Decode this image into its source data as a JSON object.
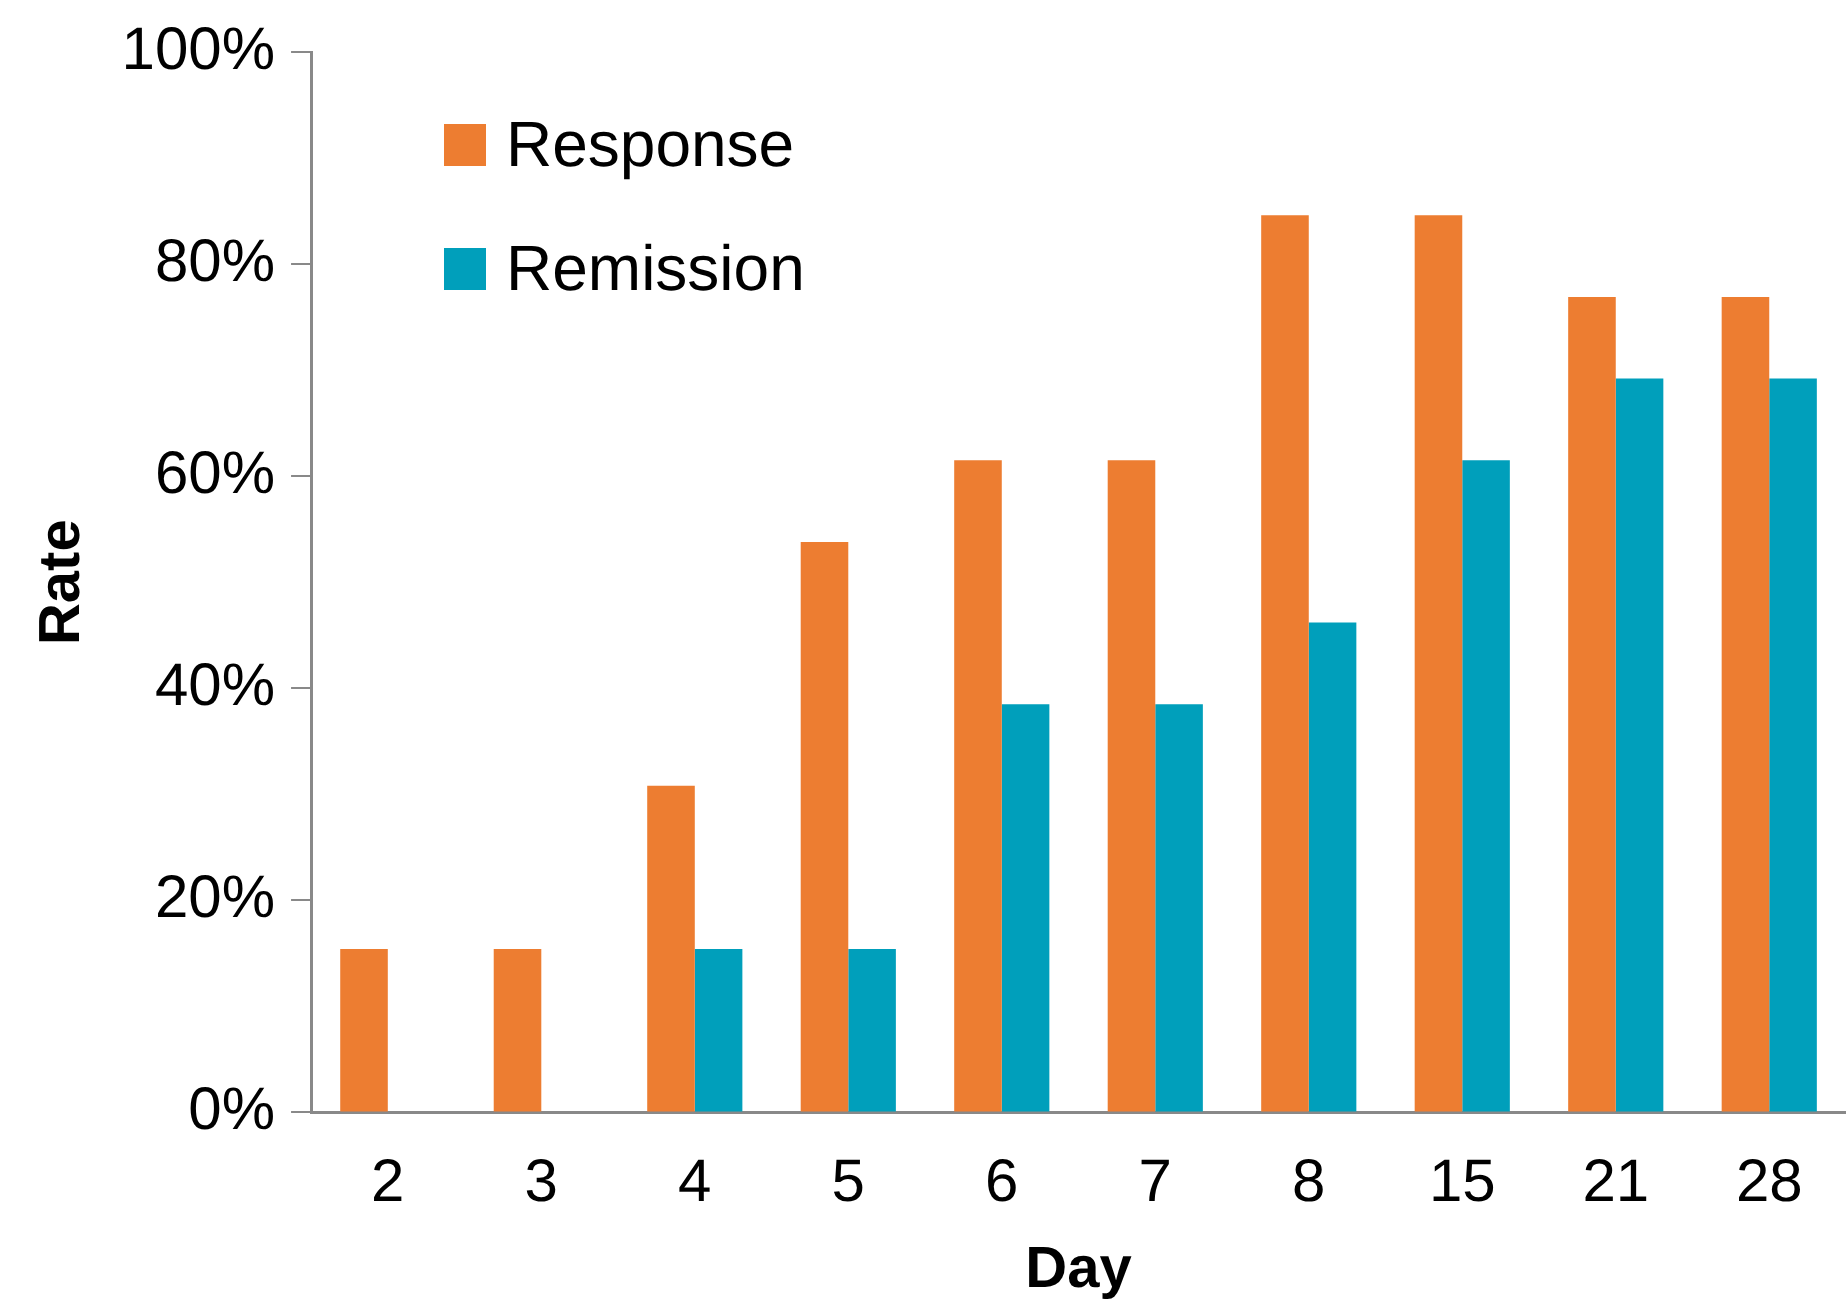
{
  "chart_data": {
    "type": "bar",
    "xlabel": "Day",
    "ylabel": "Rate",
    "categories": [
      "2",
      "3",
      "4",
      "5",
      "6",
      "7",
      "8",
      "15",
      "21",
      "28"
    ],
    "series": [
      {
        "name": "Response",
        "color": "#ed7d31",
        "values": [
          15.4,
          15.4,
          30.8,
          53.8,
          61.5,
          61.5,
          84.6,
          84.6,
          76.9,
          76.9
        ]
      },
      {
        "name": "Remission",
        "color": "#009fbb",
        "values": [
          0,
          0,
          15.4,
          15.4,
          38.5,
          38.5,
          46.2,
          61.5,
          69.2,
          69.2
        ]
      }
    ],
    "ylim": [
      0,
      100
    ],
    "yticks": [
      {
        "value": 0,
        "label": "0%"
      },
      {
        "value": 20,
        "label": "20%"
      },
      {
        "value": 40,
        "label": "40%"
      },
      {
        "value": 60,
        "label": "60%"
      },
      {
        "value": 80,
        "label": "80%"
      },
      {
        "value": 100,
        "label": "100%"
      }
    ],
    "grid": false,
    "legend": "top left"
  }
}
